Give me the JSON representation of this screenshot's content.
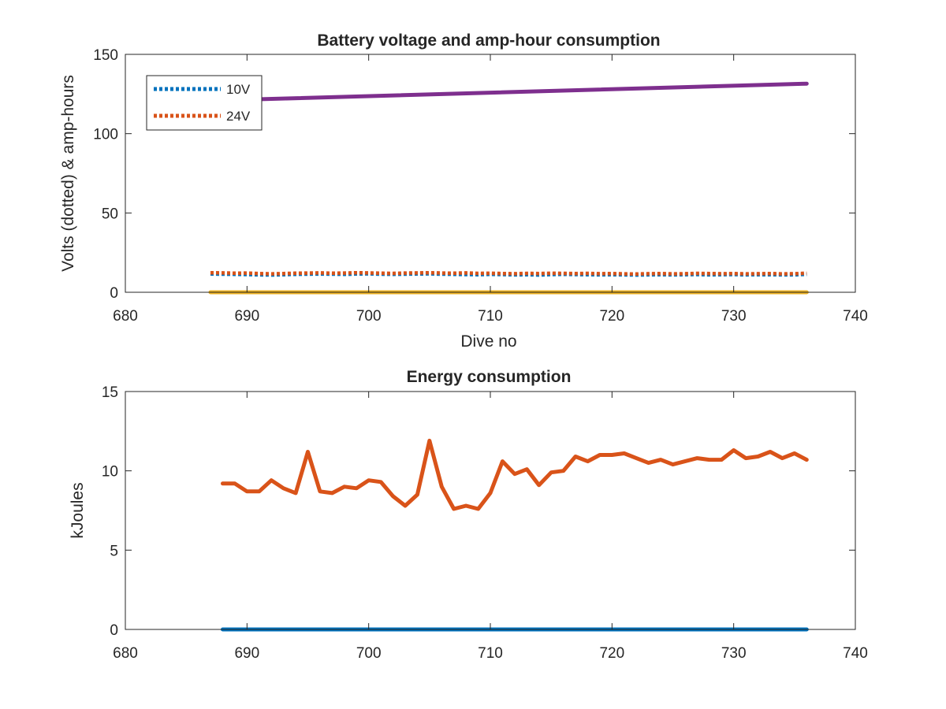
{
  "chart_data": [
    {
      "type": "line",
      "title": "Battery voltage and amp-hour consumption",
      "xlabel": "Dive no",
      "ylabel": "Volts (dotted) & amp-hours",
      "xlim": [
        680,
        740
      ],
      "ylim": [
        0,
        150
      ],
      "xticks": [
        "680",
        "690",
        "700",
        "710",
        "720",
        "730",
        "740"
      ],
      "yticks": [
        "0",
        "50",
        "100",
        "150"
      ],
      "legend_position": "top-left",
      "grid": false,
      "series": [
        {
          "name": "10V",
          "style": "dotted",
          "color": "#0072BD",
          "x": [
            687,
            688,
            689,
            690,
            691,
            692,
            693,
            694,
            695,
            696,
            697,
            698,
            699,
            700,
            701,
            702,
            703,
            704,
            705,
            706,
            707,
            708,
            709,
            710,
            711,
            712,
            713,
            714,
            715,
            716,
            717,
            718,
            719,
            720,
            721,
            722,
            723,
            724,
            725,
            726,
            727,
            728,
            729,
            730,
            731,
            732,
            733,
            734,
            735,
            736
          ],
          "y": [
            11.5,
            11.4,
            11.3,
            11.2,
            11.0,
            10.9,
            11.1,
            11.3,
            11.4,
            11.5,
            11.4,
            11.3,
            11.5,
            11.6,
            11.4,
            11.3,
            11.4,
            11.5,
            11.6,
            11.4,
            11.3,
            11.2,
            11.1,
            11.3,
            11.2,
            11.0,
            11.1,
            10.9,
            11.2,
            11.3,
            11.2,
            11.1,
            11.0,
            11.1,
            11.0,
            10.9,
            11.0,
            11.1,
            11.0,
            11.1,
            11.2,
            11.0,
            11.1,
            11.2,
            11.0,
            11.1,
            11.1,
            11.0,
            11.0,
            11.3
          ]
        },
        {
          "name": "24V",
          "style": "dotted",
          "color": "#D95319",
          "x": [
            687,
            688,
            689,
            690,
            691,
            692,
            693,
            694,
            695,
            696,
            697,
            698,
            699,
            700,
            701,
            702,
            703,
            704,
            705,
            706,
            707,
            708,
            709,
            710,
            711,
            712,
            713,
            714,
            715,
            716,
            717,
            718,
            719,
            720,
            721,
            722,
            723,
            724,
            725,
            726,
            727,
            728,
            729,
            730,
            731,
            732,
            733,
            734,
            735,
            736
          ],
          "y": [
            12.3,
            12.2,
            12.0,
            12.1,
            11.8,
            11.6,
            11.8,
            12.0,
            12.1,
            12.2,
            12.0,
            12.1,
            12.3,
            12.2,
            12.0,
            11.9,
            12.1,
            12.2,
            12.3,
            12.1,
            12.0,
            12.2,
            11.9,
            12.0,
            11.8,
            11.7,
            11.9,
            11.8,
            12.0,
            11.9,
            11.8,
            11.9,
            11.7,
            11.8,
            11.6,
            11.5,
            11.7,
            11.8,
            11.6,
            11.7,
            11.9,
            11.8,
            11.7,
            11.8,
            11.6,
            11.7,
            11.8,
            11.6,
            11.7,
            12.0
          ]
        },
        {
          "style": "solid",
          "color": "#7E2F8E",
          "x": [
            690,
            736
          ],
          "y": [
            121.5,
            131.5
          ]
        },
        {
          "style": "solid",
          "color": "#EDB120",
          "x": [
            687,
            736
          ],
          "y": [
            0,
            0
          ]
        }
      ]
    },
    {
      "type": "line",
      "title": "Energy consumption",
      "xlabel": "",
      "ylabel": "kJoules",
      "xlim": [
        680,
        740
      ],
      "ylim": [
        0,
        15
      ],
      "xticks": [
        "680",
        "690",
        "700",
        "710",
        "720",
        "730",
        "740"
      ],
      "yticks": [
        "0",
        "5",
        "10",
        "15"
      ],
      "grid": false,
      "series": [
        {
          "style": "solid",
          "color": "#0072BD",
          "x": [
            688,
            736
          ],
          "y": [
            0,
            0
          ]
        },
        {
          "style": "solid",
          "color": "#D95319",
          "x": [
            688,
            689,
            690,
            691,
            692,
            693,
            694,
            695,
            696,
            697,
            698,
            699,
            700,
            701,
            702,
            703,
            704,
            705,
            706,
            707,
            708,
            709,
            710,
            711,
            712,
            713,
            714,
            715,
            716,
            717,
            718,
            719,
            720,
            721,
            722,
            723,
            724,
            725,
            726,
            727,
            728,
            729,
            730,
            731,
            732,
            733,
            734,
            735,
            736
          ],
          "y": [
            9.2,
            9.2,
            8.7,
            8.7,
            9.4,
            8.9,
            8.6,
            11.2,
            8.7,
            8.6,
            9.0,
            8.9,
            9.4,
            9.3,
            8.4,
            7.8,
            8.5,
            11.9,
            9.0,
            7.6,
            7.8,
            7.6,
            8.6,
            10.6,
            9.8,
            10.1,
            9.1,
            9.9,
            10.0,
            10.9,
            10.6,
            11.0,
            11.0,
            11.1,
            10.8,
            10.5,
            10.7,
            10.4,
            10.6,
            10.8,
            10.7,
            10.7,
            11.3,
            10.8,
            10.9,
            11.2,
            10.8,
            11.1,
            10.7
          ]
        }
      ]
    }
  ]
}
